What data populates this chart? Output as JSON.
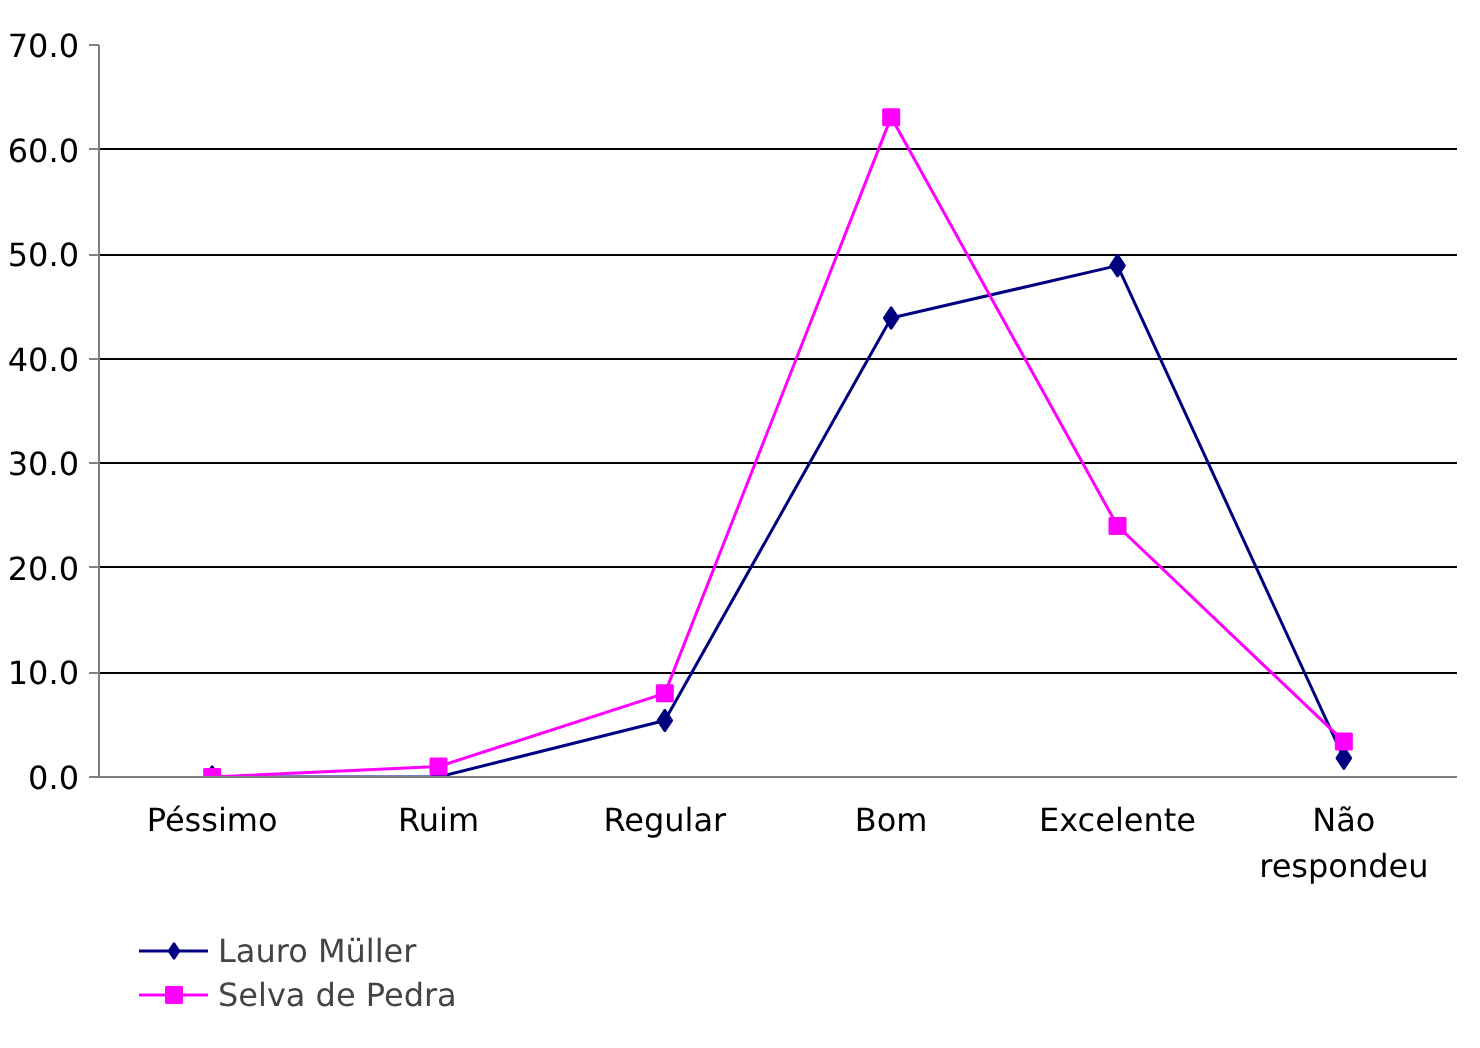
{
  "chart_data": {
    "type": "line",
    "categories": [
      "Péssimo",
      "Ruim",
      "Regular",
      "Bom",
      "Excelente",
      "Não\nrespondeu"
    ],
    "series": [
      {
        "name": "Lauro Müller",
        "color": "#000080",
        "marker": "diamond",
        "values": [
          0,
          0,
          5.4,
          43.9,
          48.9,
          1.8
        ]
      },
      {
        "name": "Selva de Pedra",
        "color": "#ff00ff",
        "marker": "square",
        "values": [
          0,
          1.0,
          8.0,
          63.1,
          24.0,
          3.4
        ]
      }
    ],
    "ylim": [
      0,
      70
    ],
    "yticks": [
      {
        "value": 0,
        "label": "0.0"
      },
      {
        "value": 10,
        "label": "10.0"
      },
      {
        "value": 20,
        "label": "20.0"
      },
      {
        "value": 30,
        "label": "30.0"
      },
      {
        "value": 40,
        "label": "40.0"
      },
      {
        "value": 50,
        "label": "50.0"
      },
      {
        "value": 60,
        "label": "60.0"
      },
      {
        "value": 70,
        "label": "70.0"
      }
    ],
    "grid": "y",
    "legend": "bottom left",
    "line_style": "solid"
  }
}
